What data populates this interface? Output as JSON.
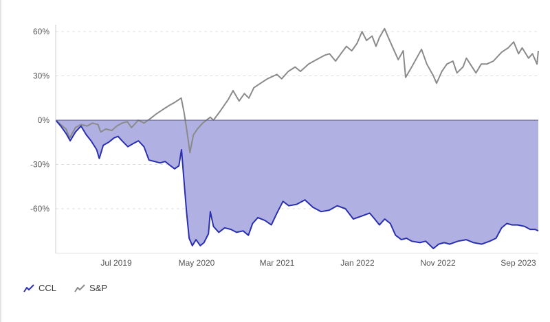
{
  "chart_data": {
    "type": "line",
    "title": "",
    "xlabel": "",
    "ylabel": "",
    "x_ticks": [
      "Jul 2019",
      "May 2020",
      "Mar 2021",
      "Jan 2022",
      "Nov 2022",
      "Sep 2023"
    ],
    "x_range": [
      "2018-11-01",
      "2023-11-01"
    ],
    "ylim": [
      -90,
      65
    ],
    "y_ticks": [
      {
        "value": 60,
        "label": "60%"
      },
      {
        "value": 30,
        "label": "30%"
      },
      {
        "value": 0,
        "label": "0%"
      },
      {
        "value": -30,
        "label": "-30%"
      },
      {
        "value": -60,
        "label": "-60%"
      }
    ],
    "grid": "horizontal dashed",
    "legend_position": "bottom-left",
    "series": [
      {
        "name": "CCL",
        "color": "#2a2fb0",
        "fill": "#b0b0e3",
        "points": [
          [
            "2018-11-01",
            0
          ],
          [
            "2018-11-20",
            -4
          ],
          [
            "2018-12-10",
            -9
          ],
          [
            "2018-12-26",
            -14
          ],
          [
            "2019-01-15",
            -8
          ],
          [
            "2019-02-05",
            -4
          ],
          [
            "2019-02-25",
            -10
          ],
          [
            "2019-03-15",
            -14
          ],
          [
            "2019-04-05",
            -20
          ],
          [
            "2019-04-15",
            -26
          ],
          [
            "2019-04-30",
            -17
          ],
          [
            "2019-05-20",
            -15
          ],
          [
            "2019-06-10",
            -12
          ],
          [
            "2019-06-25",
            -11
          ],
          [
            "2019-07-10",
            -14
          ],
          [
            "2019-08-01",
            -18
          ],
          [
            "2019-08-20",
            -16
          ],
          [
            "2019-09-10",
            -14
          ],
          [
            "2019-10-01",
            -18
          ],
          [
            "2019-10-20",
            -27
          ],
          [
            "2019-11-10",
            -28
          ],
          [
            "2019-12-01",
            -29
          ],
          [
            "2019-12-20",
            -28
          ],
          [
            "2020-01-10",
            -31
          ],
          [
            "2020-01-25",
            -33
          ],
          [
            "2020-02-10",
            -31
          ],
          [
            "2020-02-20",
            -20
          ],
          [
            "2020-02-28",
            -38
          ],
          [
            "2020-03-10",
            -62
          ],
          [
            "2020-03-20",
            -80
          ],
          [
            "2020-04-01",
            -85
          ],
          [
            "2020-04-15",
            -81
          ],
          [
            "2020-05-01",
            -85
          ],
          [
            "2020-05-15",
            -83
          ],
          [
            "2020-06-01",
            -77
          ],
          [
            "2020-06-08",
            -62
          ],
          [
            "2020-06-20",
            -72
          ],
          [
            "2020-07-10",
            -76
          ],
          [
            "2020-08-01",
            -73
          ],
          [
            "2020-08-25",
            -74
          ],
          [
            "2020-09-15",
            -76
          ],
          [
            "2020-10-10",
            -75
          ],
          [
            "2020-10-30",
            -78
          ],
          [
            "2020-11-15",
            -70
          ],
          [
            "2020-12-05",
            -66
          ],
          [
            "2021-01-01",
            -68
          ],
          [
            "2021-01-25",
            -71
          ],
          [
            "2021-02-15",
            -63
          ],
          [
            "2021-03-10",
            -55
          ],
          [
            "2021-04-01",
            -58
          ],
          [
            "2021-05-01",
            -57
          ],
          [
            "2021-06-01",
            -54
          ],
          [
            "2021-07-01",
            -59
          ],
          [
            "2021-08-01",
            -62
          ],
          [
            "2021-09-01",
            -61
          ],
          [
            "2021-10-01",
            -58
          ],
          [
            "2021-11-01",
            -60
          ],
          [
            "2021-12-01",
            -67
          ],
          [
            "2022-01-01",
            -65
          ],
          [
            "2022-02-01",
            -63
          ],
          [
            "2022-02-20",
            -67
          ],
          [
            "2022-03-10",
            -71
          ],
          [
            "2022-03-30",
            -67
          ],
          [
            "2022-04-20",
            -70
          ],
          [
            "2022-05-10",
            -78
          ],
          [
            "2022-06-01",
            -81
          ],
          [
            "2022-06-20",
            -80
          ],
          [
            "2022-07-10",
            -82
          ],
          [
            "2022-08-10",
            -83
          ],
          [
            "2022-09-01",
            -82
          ],
          [
            "2022-09-30",
            -87
          ],
          [
            "2022-10-20",
            -84
          ],
          [
            "2022-11-10",
            -83
          ],
          [
            "2022-12-01",
            -84
          ],
          [
            "2023-01-01",
            -82
          ],
          [
            "2023-02-01",
            -81
          ],
          [
            "2023-03-01",
            -83
          ],
          [
            "2023-04-01",
            -84
          ],
          [
            "2023-05-01",
            -82
          ],
          [
            "2023-05-25",
            -80
          ],
          [
            "2023-06-15",
            -73
          ],
          [
            "2023-07-05",
            -70
          ],
          [
            "2023-07-25",
            -71
          ],
          [
            "2023-08-15",
            -71
          ],
          [
            "2023-09-10",
            -72
          ],
          [
            "2023-10-01",
            -74
          ],
          [
            "2023-10-20",
            -74
          ],
          [
            "2023-11-01",
            -75
          ]
        ]
      },
      {
        "name": "S&P",
        "color": "#8a8a8a",
        "points": [
          [
            "2018-11-01",
            0
          ],
          [
            "2018-11-20",
            -3
          ],
          [
            "2018-12-10",
            -6
          ],
          [
            "2018-12-24",
            -12
          ],
          [
            "2019-01-15",
            -5
          ],
          [
            "2019-02-05",
            -3
          ],
          [
            "2019-02-28",
            -4
          ],
          [
            "2019-03-20",
            -2
          ],
          [
            "2019-04-10",
            -3
          ],
          [
            "2019-04-20",
            -8
          ],
          [
            "2019-05-10",
            -6
          ],
          [
            "2019-06-01",
            -7
          ],
          [
            "2019-06-20",
            -4
          ],
          [
            "2019-07-10",
            -2
          ],
          [
            "2019-07-30",
            -1
          ],
          [
            "2019-08-15",
            -5
          ],
          [
            "2019-09-10",
            0
          ],
          [
            "2019-10-01",
            -2
          ],
          [
            "2019-10-25",
            1
          ],
          [
            "2019-11-15",
            4
          ],
          [
            "2019-12-10",
            7
          ],
          [
            "2020-01-05",
            10
          ],
          [
            "2020-01-25",
            12
          ],
          [
            "2020-02-19",
            15
          ],
          [
            "2020-03-01",
            5
          ],
          [
            "2020-03-12",
            -8
          ],
          [
            "2020-03-23",
            -22
          ],
          [
            "2020-04-05",
            -10
          ],
          [
            "2020-04-20",
            -6
          ],
          [
            "2020-05-10",
            -2
          ],
          [
            "2020-06-08",
            2
          ],
          [
            "2020-06-20",
            0
          ],
          [
            "2020-07-15",
            6
          ],
          [
            "2020-08-15",
            14
          ],
          [
            "2020-09-02",
            20
          ],
          [
            "2020-09-25",
            13
          ],
          [
            "2020-10-15",
            18
          ],
          [
            "2020-11-01",
            15
          ],
          [
            "2020-11-20",
            22
          ],
          [
            "2020-12-15",
            25
          ],
          [
            "2021-01-10",
            28
          ],
          [
            "2021-02-15",
            31
          ],
          [
            "2021-03-05",
            28
          ],
          [
            "2021-03-30",
            33
          ],
          [
            "2021-04-25",
            36
          ],
          [
            "2021-05-15",
            33
          ],
          [
            "2021-06-15",
            38
          ],
          [
            "2021-07-15",
            41
          ],
          [
            "2021-08-15",
            44
          ],
          [
            "2021-09-02",
            45
          ],
          [
            "2021-09-25",
            40
          ],
          [
            "2021-10-15",
            45
          ],
          [
            "2021-11-05",
            50
          ],
          [
            "2021-11-25",
            47
          ],
          [
            "2021-12-15",
            52
          ],
          [
            "2022-01-03",
            60
          ],
          [
            "2022-01-20",
            54
          ],
          [
            "2022-02-10",
            57
          ],
          [
            "2022-02-25",
            50
          ],
          [
            "2022-03-10",
            56
          ],
          [
            "2022-03-29",
            62
          ],
          [
            "2022-04-15",
            55
          ],
          [
            "2022-05-10",
            45
          ],
          [
            "2022-05-20",
            41
          ],
          [
            "2022-06-08",
            47
          ],
          [
            "2022-06-17",
            29
          ],
          [
            "2022-07-10",
            36
          ],
          [
            "2022-08-16",
            48
          ],
          [
            "2022-09-05",
            38
          ],
          [
            "2022-09-30",
            30
          ],
          [
            "2022-10-12",
            25
          ],
          [
            "2022-11-01",
            33
          ],
          [
            "2022-11-20",
            38
          ],
          [
            "2022-12-13",
            40
          ],
          [
            "2022-12-28",
            32
          ],
          [
            "2023-01-20",
            36
          ],
          [
            "2023-02-02",
            42
          ],
          [
            "2023-03-10",
            32
          ],
          [
            "2023-03-30",
            38
          ],
          [
            "2023-04-20",
            38
          ],
          [
            "2023-05-15",
            40
          ],
          [
            "2023-06-15",
            46
          ],
          [
            "2023-07-10",
            49
          ],
          [
            "2023-07-31",
            53
          ],
          [
            "2023-08-18",
            45
          ],
          [
            "2023-09-01",
            49
          ],
          [
            "2023-09-25",
            42
          ],
          [
            "2023-10-10",
            45
          ],
          [
            "2023-10-27",
            38
          ],
          [
            "2023-11-01",
            47
          ]
        ]
      }
    ]
  }
}
